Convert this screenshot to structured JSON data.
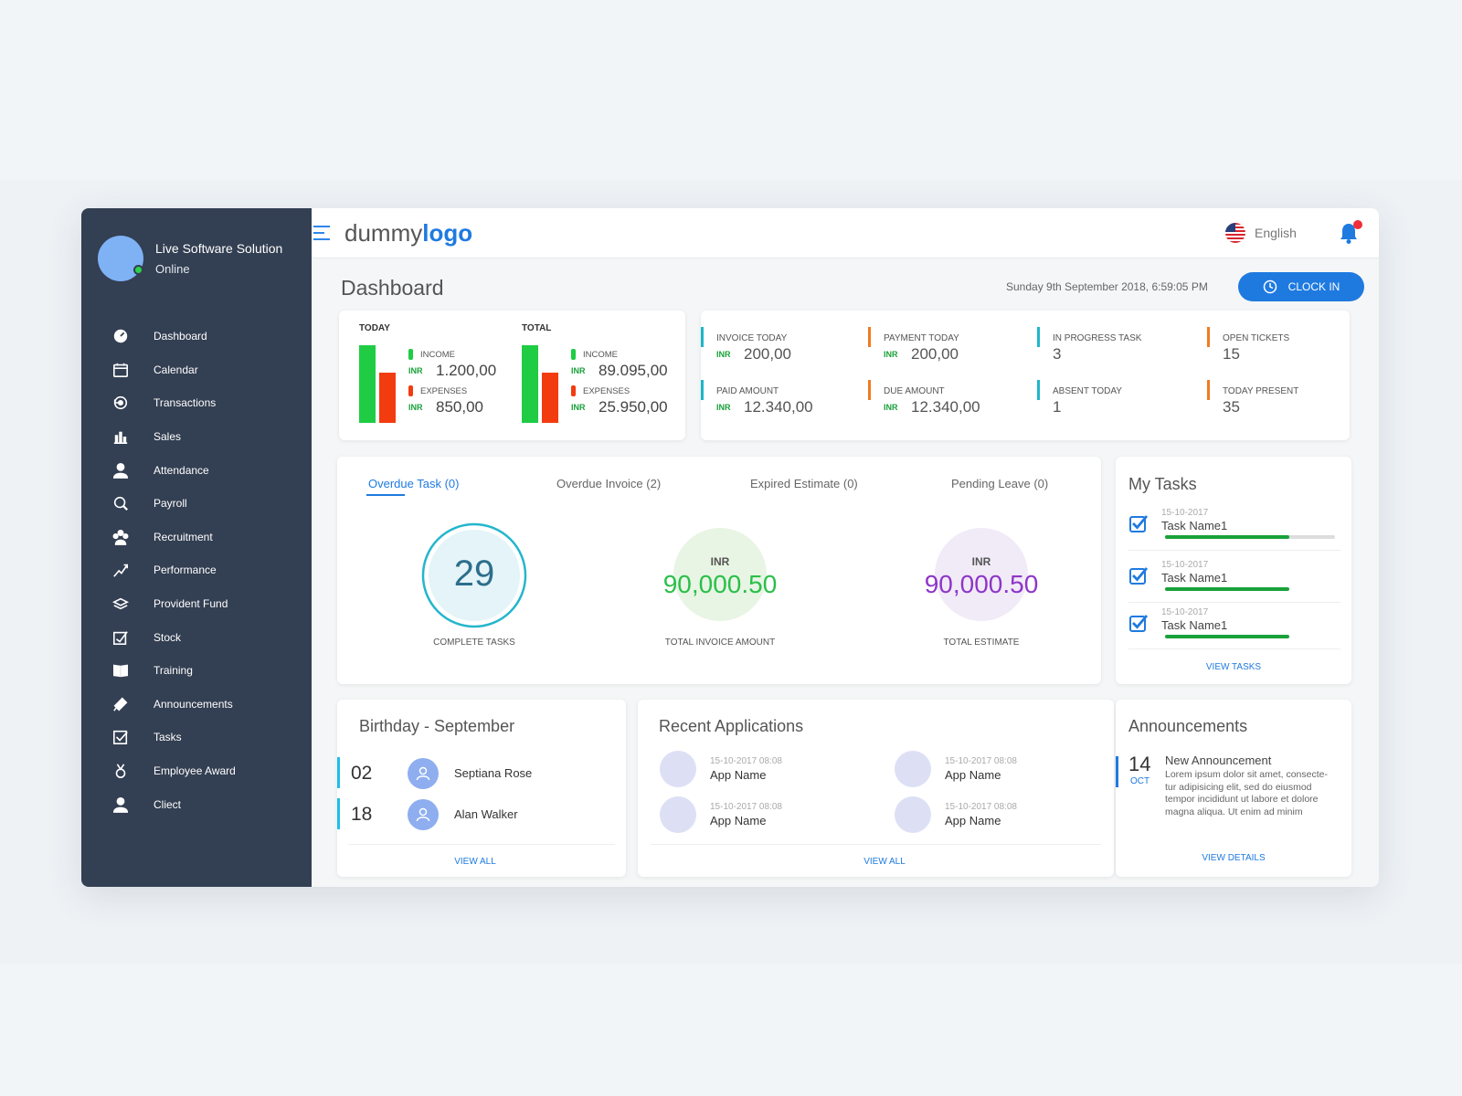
{
  "sidebar": {
    "company": "Live Software Solution",
    "status": "Online",
    "items": [
      {
        "label": "Dashboard",
        "icon": "dashboard-icon"
      },
      {
        "label": "Calendar",
        "icon": "calendar-icon"
      },
      {
        "label": "Transactions",
        "icon": "transactions-icon"
      },
      {
        "label": "Sales",
        "icon": "sales-icon"
      },
      {
        "label": "Attendance",
        "icon": "attendance-icon"
      },
      {
        "label": "Payroll",
        "icon": "payroll-icon"
      },
      {
        "label": "Recruitment",
        "icon": "recruitment-icon"
      },
      {
        "label": "Performance",
        "icon": "performance-icon"
      },
      {
        "label": "Provident Fund",
        "icon": "provident-fund-icon"
      },
      {
        "label": "Stock",
        "icon": "stock-icon"
      },
      {
        "label": "Training",
        "icon": "training-icon"
      },
      {
        "label": "Announcements",
        "icon": "announcements-icon"
      },
      {
        "label": "Tasks",
        "icon": "tasks-icon"
      },
      {
        "label": "Employee Award",
        "icon": "award-icon"
      },
      {
        "label": "Cliect",
        "icon": "client-icon"
      }
    ]
  },
  "header": {
    "logo_part1": "dummy",
    "logo_part2": "logo",
    "language": "English"
  },
  "page": {
    "title": "Dashboard",
    "datetime": "Sunday 9th September 2018, 6:59:05 PM",
    "clock_in": "CLOCK IN"
  },
  "finance": {
    "today": {
      "heading": "TODAY",
      "income_label": "INCOME",
      "income_currency": "INR",
      "income": "1.200,00",
      "expenses_label": "EXPENSES",
      "expenses_currency": "INR",
      "expenses": "850,00"
    },
    "total": {
      "heading": "TOTAL",
      "income_label": "INCOME",
      "income_currency": "INR",
      "income": "89.095,00",
      "expenses_label": "EXPENSES",
      "expenses_currency": "INR",
      "expenses": "25.950,00"
    }
  },
  "stats": [
    {
      "label": "INVOICE TODAY",
      "currency": "INR",
      "value": "200,00",
      "color": "#1fb6c9"
    },
    {
      "label": "PAYMENT TODAY",
      "currency": "INR",
      "value": "200,00",
      "color": "#f07a22"
    },
    {
      "label": "IN PROGRESS TASK",
      "currency": "",
      "value": "3",
      "color": "#1fb6c9"
    },
    {
      "label": "OPEN TICKETS",
      "currency": "",
      "value": "15",
      "color": "#f07a22"
    },
    {
      "label": "PAID AMOUNT",
      "currency": "INR",
      "value": "12.340,00",
      "color": "#1fb6c9"
    },
    {
      "label": "DUE AMOUNT",
      "currency": "INR",
      "value": "12.340,00",
      "color": "#f07a22"
    },
    {
      "label": "ABSENT TODAY",
      "currency": "",
      "value": "1",
      "color": "#1fb6c9"
    },
    {
      "label": "TODAY PRESENT",
      "currency": "",
      "value": "35",
      "color": "#f07a22"
    }
  ],
  "tabs": [
    "Overdue Task (0)",
    "Overdue Invoice (2)",
    "Expired Estimate (0)",
    "Pending Leave (0)"
  ],
  "summary": {
    "complete_tasks": {
      "value": "29",
      "caption": "COMPLETE TASKS"
    },
    "invoice": {
      "currency": "INR",
      "value": "90,000.50",
      "caption": "TOTAL INVOICE AMOUNT",
      "color": "#2bbf4a"
    },
    "estimate": {
      "currency": "INR",
      "value": "90,000.50",
      "caption": "TOTAL ESTIMATE",
      "color": "#8e36c8"
    }
  },
  "my_tasks": {
    "title": "My Tasks",
    "items": [
      {
        "date": "15-10-2017",
        "name": "Task Name1",
        "progress": 0.73
      },
      {
        "date": "15-10-2017",
        "name": "Task Name1",
        "progress": 0.73
      },
      {
        "date": "15-10-2017",
        "name": "Task Name1",
        "progress": 0.73
      }
    ],
    "view_label": "VIEW TASKS"
  },
  "birthday": {
    "title": "Birthday - September",
    "items": [
      {
        "day": "02",
        "name": "Septiana Rose"
      },
      {
        "day": "18",
        "name": "Alan Walker"
      }
    ],
    "view_label": "VIEW ALL"
  },
  "recent": {
    "title": "Recent Applications",
    "items": [
      {
        "date": "15-10-2017 08:08",
        "name": "App Name"
      },
      {
        "date": "15-10-2017 08:08",
        "name": "App Name"
      },
      {
        "date": "15-10-2017 08:08",
        "name": "App Name"
      },
      {
        "date": "15-10-2017 08:08",
        "name": "App Name"
      }
    ],
    "view_label": "VIEW ALL"
  },
  "announcements": {
    "title": "Announcements",
    "day": "14",
    "month": "OCT",
    "item_title": "New Announcement",
    "text": "Lorem ipsum dolor sit amet, consecte-tur adipisicing elit, sed do eiusmod tempor incididunt ut labore et dolore magna aliqua. Ut enim ad minim",
    "view_label": "VIEW DETAILS"
  }
}
